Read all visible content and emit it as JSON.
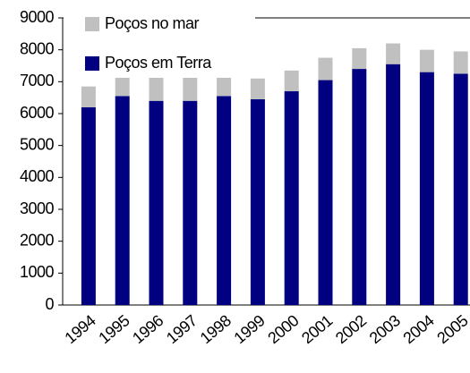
{
  "chart_data": {
    "type": "stacked_bar",
    "categories": [
      "1994",
      "1995",
      "1996",
      "1997",
      "1998",
      "1999",
      "2000",
      "2001",
      "2002",
      "2003",
      "2004",
      "2005"
    ],
    "series": [
      {
        "name": "Poços em Terra",
        "color": "#000080",
        "values": [
          6200,
          6550,
          6400,
          6400,
          6550,
          6450,
          6700,
          7050,
          7400,
          7550,
          7300,
          7250
        ]
      },
      {
        "name": "Poços no mar",
        "color": "#c0c0c0",
        "values": [
          650,
          700,
          800,
          800,
          700,
          650,
          650,
          700,
          650,
          650,
          700,
          700
        ]
      }
    ],
    "ylim": [
      0,
      9000
    ],
    "yticks": [
      0,
      1000,
      2000,
      3000,
      4000,
      5000,
      6000,
      7000,
      8000,
      9000
    ],
    "grid": false,
    "legend": "top-left"
  }
}
